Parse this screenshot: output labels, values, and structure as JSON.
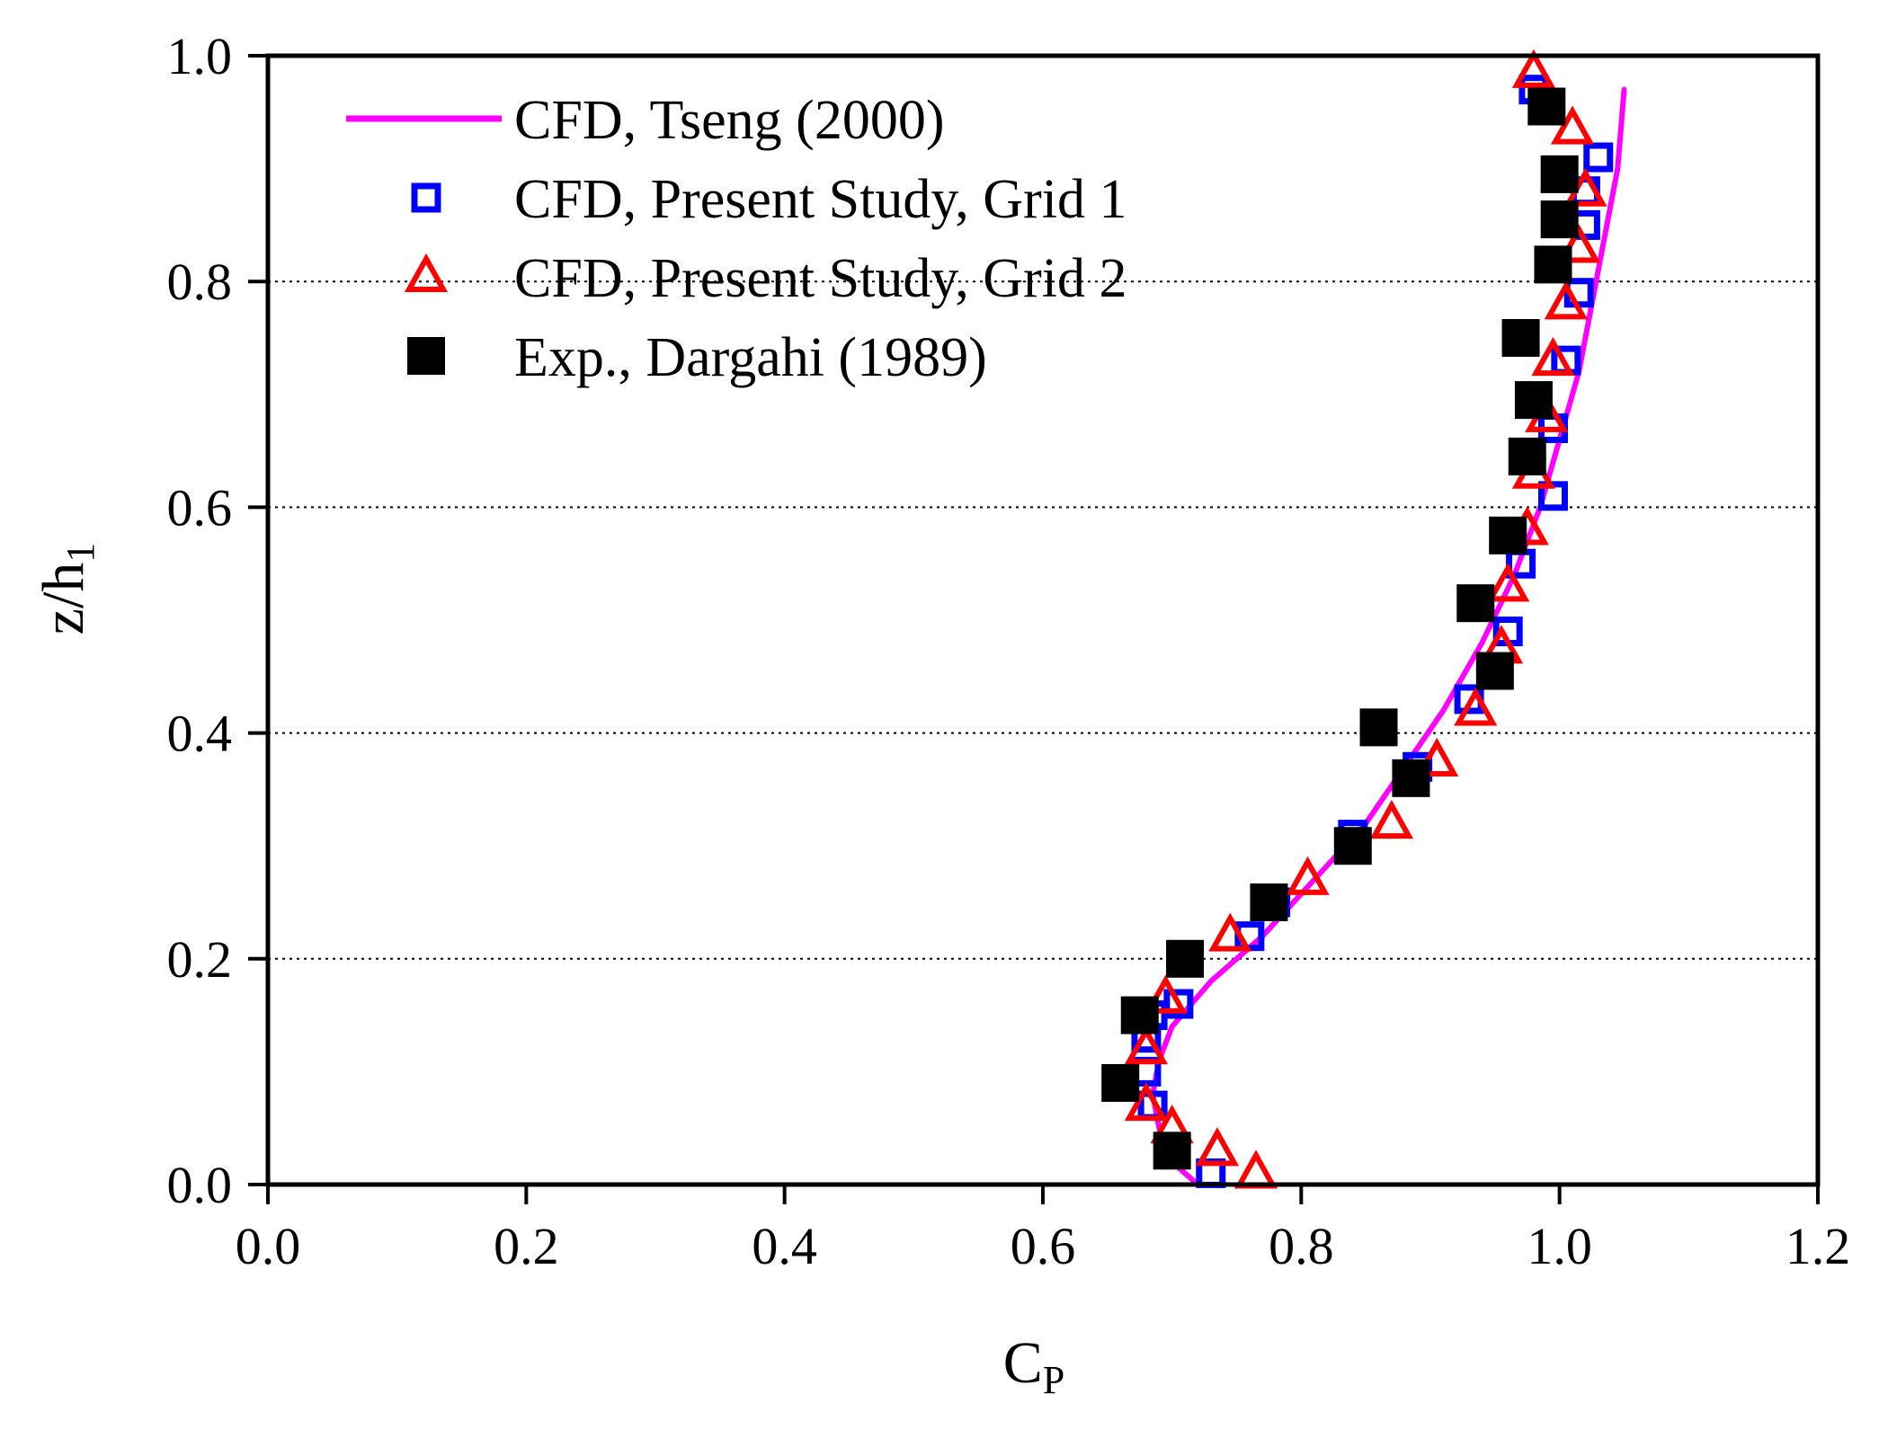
{
  "chart_data": {
    "type": "scatter",
    "xlabel": "C",
    "xlabel_sub": "P",
    "ylabel": "z/h",
    "ylabel_sub": "1",
    "xlim": [
      0.0,
      1.2
    ],
    "ylim": [
      0.0,
      1.0
    ],
    "xticks": [
      "0.0",
      "0.2",
      "0.4",
      "0.6",
      "0.8",
      "1.0",
      "1.2"
    ],
    "yticks": [
      "0.0",
      "0.2",
      "0.4",
      "0.6",
      "0.8",
      "1.0"
    ],
    "grid": "horizontal dotted",
    "legend_position": "top-left",
    "series": [
      {
        "name": "CFD, Tseng (2000)",
        "style": "line",
        "color": "#ff00ff",
        "x": [
          0.72,
          0.7,
          0.69,
          0.685,
          0.69,
          0.7,
          0.73,
          0.77,
          0.81,
          0.85,
          0.88,
          0.91,
          0.94,
          0.965,
          0.985,
          1.0,
          1.015,
          1.025,
          1.035,
          1.045,
          1.05
        ],
        "y": [
          0.0,
          0.02,
          0.05,
          0.08,
          0.11,
          0.14,
          0.18,
          0.22,
          0.27,
          0.32,
          0.37,
          0.42,
          0.48,
          0.54,
          0.6,
          0.66,
          0.72,
          0.78,
          0.84,
          0.9,
          0.97
        ]
      },
      {
        "name": "CFD, Present Study, Grid 1",
        "style": "open-square",
        "color": "#0000ff",
        "x": [
          0.73,
          0.7,
          0.685,
          0.68,
          0.68,
          0.685,
          0.705,
          0.76,
          0.78,
          0.84,
          0.89,
          0.93,
          0.96,
          0.97,
          0.995,
          0.995,
          1.005,
          1.015,
          1.02,
          1.02,
          1.03,
          0.98
        ],
        "y": [
          0.01,
          0.03,
          0.07,
          0.1,
          0.13,
          0.15,
          0.16,
          0.22,
          0.25,
          0.31,
          0.37,
          0.43,
          0.49,
          0.55,
          0.61,
          0.67,
          0.73,
          0.79,
          0.85,
          0.88,
          0.91,
          0.97
        ]
      },
      {
        "name": "CFD, Present Study, Grid 2",
        "style": "open-triangle",
        "color": "#ff0000",
        "x": [
          0.765,
          0.735,
          0.7,
          0.68,
          0.68,
          0.695,
          0.745,
          0.805,
          0.87,
          0.905,
          0.935,
          0.955,
          0.96,
          0.975,
          0.98,
          0.99,
          0.995,
          1.005,
          1.015,
          1.02,
          1.01,
          0.98
        ],
        "y": [
          0.01,
          0.03,
          0.05,
          0.07,
          0.12,
          0.165,
          0.22,
          0.27,
          0.32,
          0.375,
          0.42,
          0.475,
          0.53,
          0.58,
          0.63,
          0.68,
          0.73,
          0.78,
          0.83,
          0.88,
          0.935,
          0.985
        ]
      },
      {
        "name": "Exp., Dargahi (1989)",
        "style": "filled-square",
        "color": "#000000",
        "x": [
          0.7,
          0.66,
          0.675,
          0.71,
          0.775,
          0.84,
          0.885,
          0.86,
          0.95,
          0.935,
          0.96,
          0.975,
          0.98,
          0.97,
          0.995,
          1.0,
          1.0,
          0.99
        ],
        "y": [
          0.03,
          0.09,
          0.15,
          0.2,
          0.25,
          0.3,
          0.36,
          0.405,
          0.455,
          0.515,
          0.575,
          0.645,
          0.695,
          0.75,
          0.815,
          0.855,
          0.895,
          0.955
        ]
      }
    ]
  }
}
